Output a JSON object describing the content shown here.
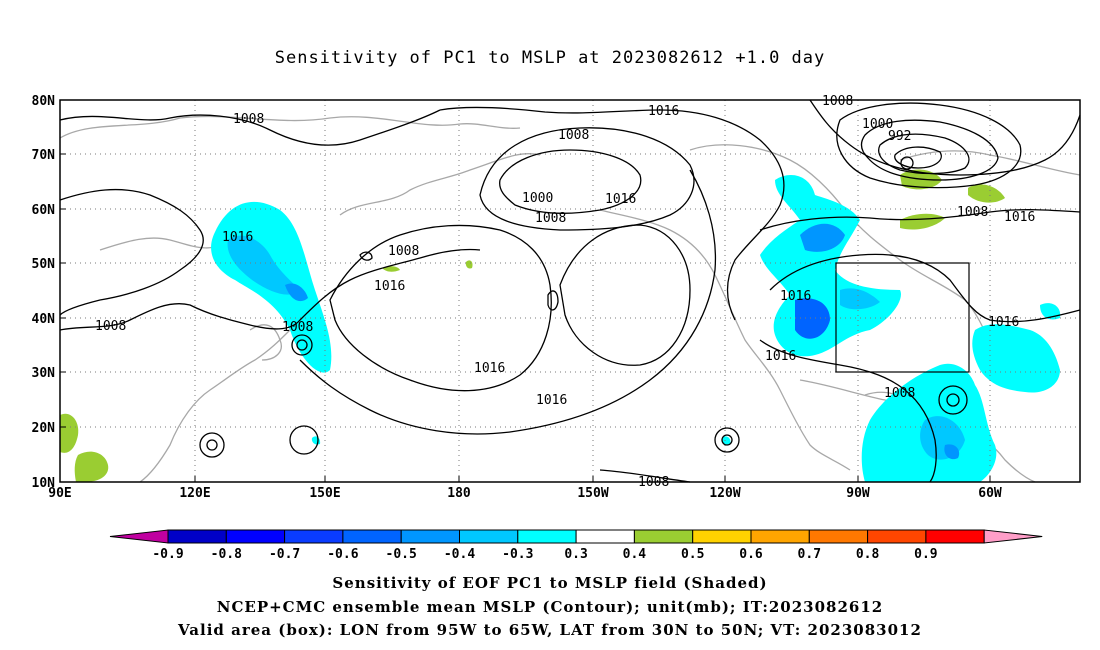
{
  "title": "Sensitivity of PC1 to MSLP at 2023082612 +1.0 day",
  "axes": {
    "x_ticks": [
      "90E",
      "120E",
      "150E",
      "180",
      "150W",
      "120W",
      "90W",
      "60W"
    ],
    "y_ticks": [
      "80N",
      "70N",
      "60N",
      "50N",
      "40N",
      "30N",
      "20N",
      "10N"
    ]
  },
  "contour_labels": [
    "1008",
    "1016",
    "1008",
    "1000",
    "992",
    "1008",
    "1008",
    "1000",
    "1008",
    "1016",
    "1016",
    "1016",
    "1008",
    "1008",
    "1016",
    "1016",
    "1016",
    "1016",
    "1016",
    "1016",
    "1008",
    "1008",
    "1008"
  ],
  "colorbar": {
    "colors": [
      "#c000a0",
      "#0000c8",
      "#0000ff",
      "#0a3cff",
      "#0064ff",
      "#0096ff",
      "#00c8ff",
      "#00ffff",
      "#ffffff",
      "#9acd32",
      "#ffd200",
      "#ffa500",
      "#ff7800",
      "#ff4600",
      "#ff0000",
      "#ff9ec8"
    ],
    "tick_labels": [
      "-0.9",
      "-0.8",
      "-0.7",
      "-0.6",
      "-0.5",
      "-0.4",
      "-0.3",
      "0.3",
      "0.4",
      "0.5",
      "0.6",
      "0.7",
      "0.8",
      "0.9"
    ]
  },
  "captions": {
    "line1": "Sensitivity of EOF PC1 to MSLP field (Shaded)",
    "line2": "NCEP+CMC ensemble mean MSLP (Contour); unit(mb); IT:2023082612",
    "line3": "Valid area (box): LON from 95W to 65W, LAT from 30N to 50N; VT: 2023083012"
  }
}
